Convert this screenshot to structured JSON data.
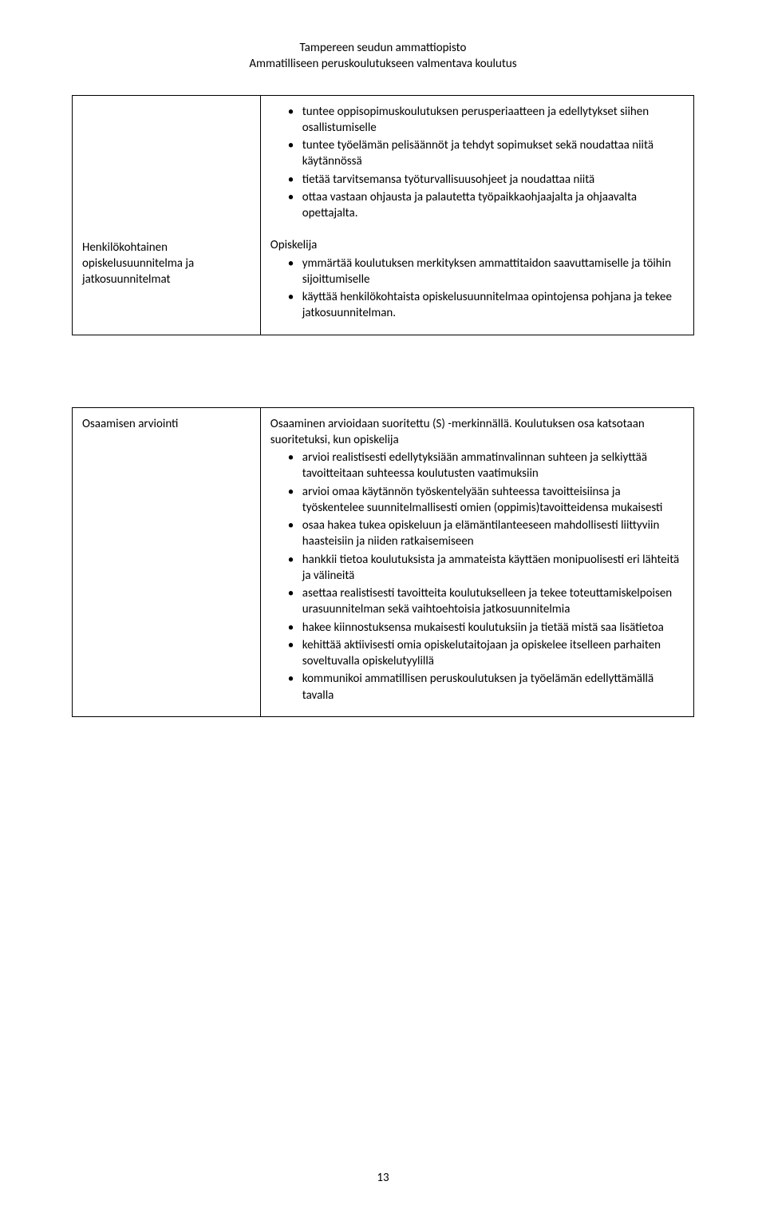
{
  "header": {
    "line1": "Tampereen seudun ammattiopisto",
    "line2": "Ammatilliseen peruskoulutukseen valmentava koulutus"
  },
  "table1": {
    "leftLabel": "Henkilökohtainen opiskelusuunnitelma ja jatkosuunnitelmat",
    "block1": {
      "items": [
        "tuntee oppisopimuskoulutuksen perusperiaatteen ja edellytykset siihen osallistumiselle",
        "tuntee työelämän pelisäännöt ja tehdyt sopimukset sekä noudattaa niitä käytännössä",
        "tietää tarvitsemansa työturvallisuusohjeet ja noudattaa niitä",
        "ottaa vastaan ohjausta ja palautetta työpaikkaohjaajalta ja ohjaavalta opettajalta."
      ]
    },
    "block2": {
      "intro": "Opiskelija",
      "items": [
        "ymmärtää koulutuksen merkityksen ammattitaidon saavuttamiselle ja töihin sijoittumiselle",
        "käyttää henkilökohtaista opiskelusuunnitelmaa opintojensa pohjana ja tekee jatkosuunnitelman."
      ]
    }
  },
  "table2": {
    "leftLabel": "Osaamisen arviointi",
    "intro": "Osaaminen arvioidaan suoritettu (S) -merkinnällä. Koulutuksen osa katsotaan suoritetuksi, kun opiskelija",
    "items": [
      "arvioi realistisesti edellytyksiään ammatinvalinnan suhteen ja selkiyttää tavoitteitaan suhteessa koulutusten vaatimuksiin",
      "arvioi omaa käytännön työskentelyään suhteessa tavoitteisiinsa ja työskentelee suunnitelmallisesti omien (oppimis)tavoitteidensa mukaisesti",
      "osaa hakea tukea opiskeluun ja elämäntilanteeseen mahdollisesti liittyviin haasteisiin ja niiden ratkaisemiseen",
      "hankkii tietoa koulutuksista ja ammateista käyttäen monipuolisesti eri lähteitä ja välineitä",
      "asettaa realistisesti tavoitteita koulutukselleen ja tekee toteuttamiskelpoisen urasuunnitelman sekä vaihtoehtoisia jatkosuunnitelmia",
      "hakee kiinnostuksensa mukaisesti koulutuksiin ja tietää mistä saa lisätietoa",
      "kehittää aktiivisesti omia opiskelutaitojaan ja opiskelee itselleen parhaiten soveltuvalla opiskelutyylillä",
      "kommunikoi ammatillisen peruskoulutuksen ja työelämän edellyttämällä tavalla"
    ]
  },
  "pageNumber": "13"
}
